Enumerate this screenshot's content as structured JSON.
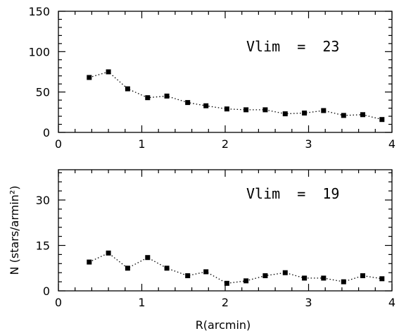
{
  "chart_data": [
    {
      "type": "scatter",
      "x": [
        0.37,
        0.6,
        0.83,
        1.07,
        1.3,
        1.55,
        1.77,
        2.02,
        2.25,
        2.48,
        2.72,
        2.95,
        3.18,
        3.42,
        3.65,
        3.88
      ],
      "series": [
        {
          "values": [
            68,
            75,
            54,
            43,
            45,
            37,
            33,
            29,
            28,
            28,
            23,
            24,
            27,
            21,
            22,
            16
          ]
        }
      ],
      "annotation": "Vlim  =  23",
      "xlim": [
        0,
        4
      ],
      "ylim": [
        0,
        150
      ],
      "xticks": [
        "0",
        "1",
        "2",
        "3",
        "4"
      ],
      "yticks": [
        "0",
        "50",
        "100",
        "150"
      ],
      "xlabel": "",
      "ylabel": ""
    },
    {
      "type": "scatter",
      "x": [
        0.37,
        0.6,
        0.83,
        1.07,
        1.3,
        1.55,
        1.77,
        2.02,
        2.25,
        2.48,
        2.72,
        2.95,
        3.18,
        3.42,
        3.65,
        3.88
      ],
      "series": [
        {
          "values": [
            9.5,
            12.5,
            7.5,
            11,
            7.5,
            5,
            6.3,
            2.5,
            3.3,
            5,
            6,
            4.2,
            4.2,
            3,
            5,
            4
          ]
        }
      ],
      "annotation": "Vlim  =  19",
      "xlim": [
        0,
        4
      ],
      "ylim": [
        0,
        40
      ],
      "xticks": [
        "0",
        "1",
        "2",
        "3",
        "4"
      ],
      "yticks": [
        "0",
        "15",
        "30"
      ],
      "xlabel": "R(arcmin)",
      "ylabel": "N  (stars/armin²)"
    }
  ]
}
